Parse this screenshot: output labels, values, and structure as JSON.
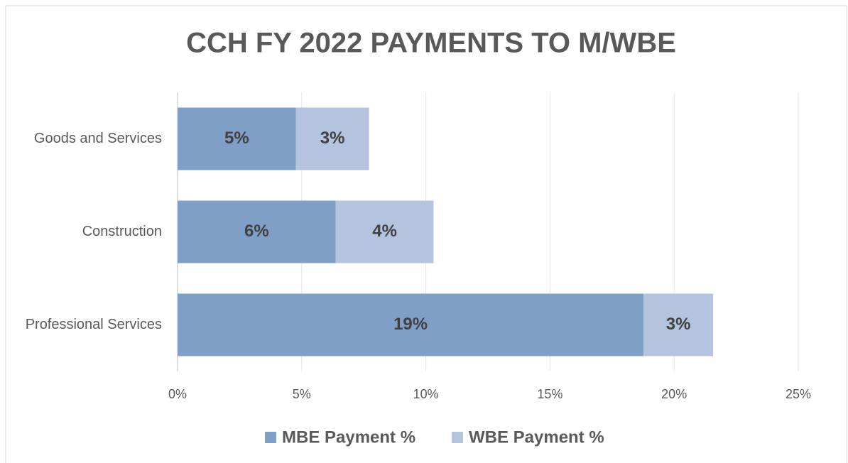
{
  "chart_data": {
    "type": "stacked_barh",
    "title": "CCH FY 2022 PAYMENTS TO M/WBE",
    "categories": [
      "Goods and Services",
      "Construction",
      "Professional Services"
    ],
    "series": [
      {
        "name": "MBE Payment %",
        "color": "#7f9fc6",
        "values": [
          4.77,
          6.37,
          18.77
        ],
        "value_labels": [
          "5%",
          "6%",
          "19%"
        ]
      },
      {
        "name": "WBE Payment %",
        "color": "#b4c3de",
        "values": [
          2.94,
          3.94,
          2.8
        ],
        "value_labels": [
          "3%",
          "4%",
          "3%"
        ]
      }
    ],
    "xlim": [
      0,
      25
    ],
    "xticks": [
      {
        "value": 0,
        "label": "0%"
      },
      {
        "value": 5,
        "label": "5%"
      },
      {
        "value": 10,
        "label": "10%"
      },
      {
        "value": 15,
        "label": "15%"
      },
      {
        "value": 20,
        "label": "20%"
      },
      {
        "value": 25,
        "label": "25%"
      }
    ],
    "grid": true,
    "legend": "bottom"
  }
}
